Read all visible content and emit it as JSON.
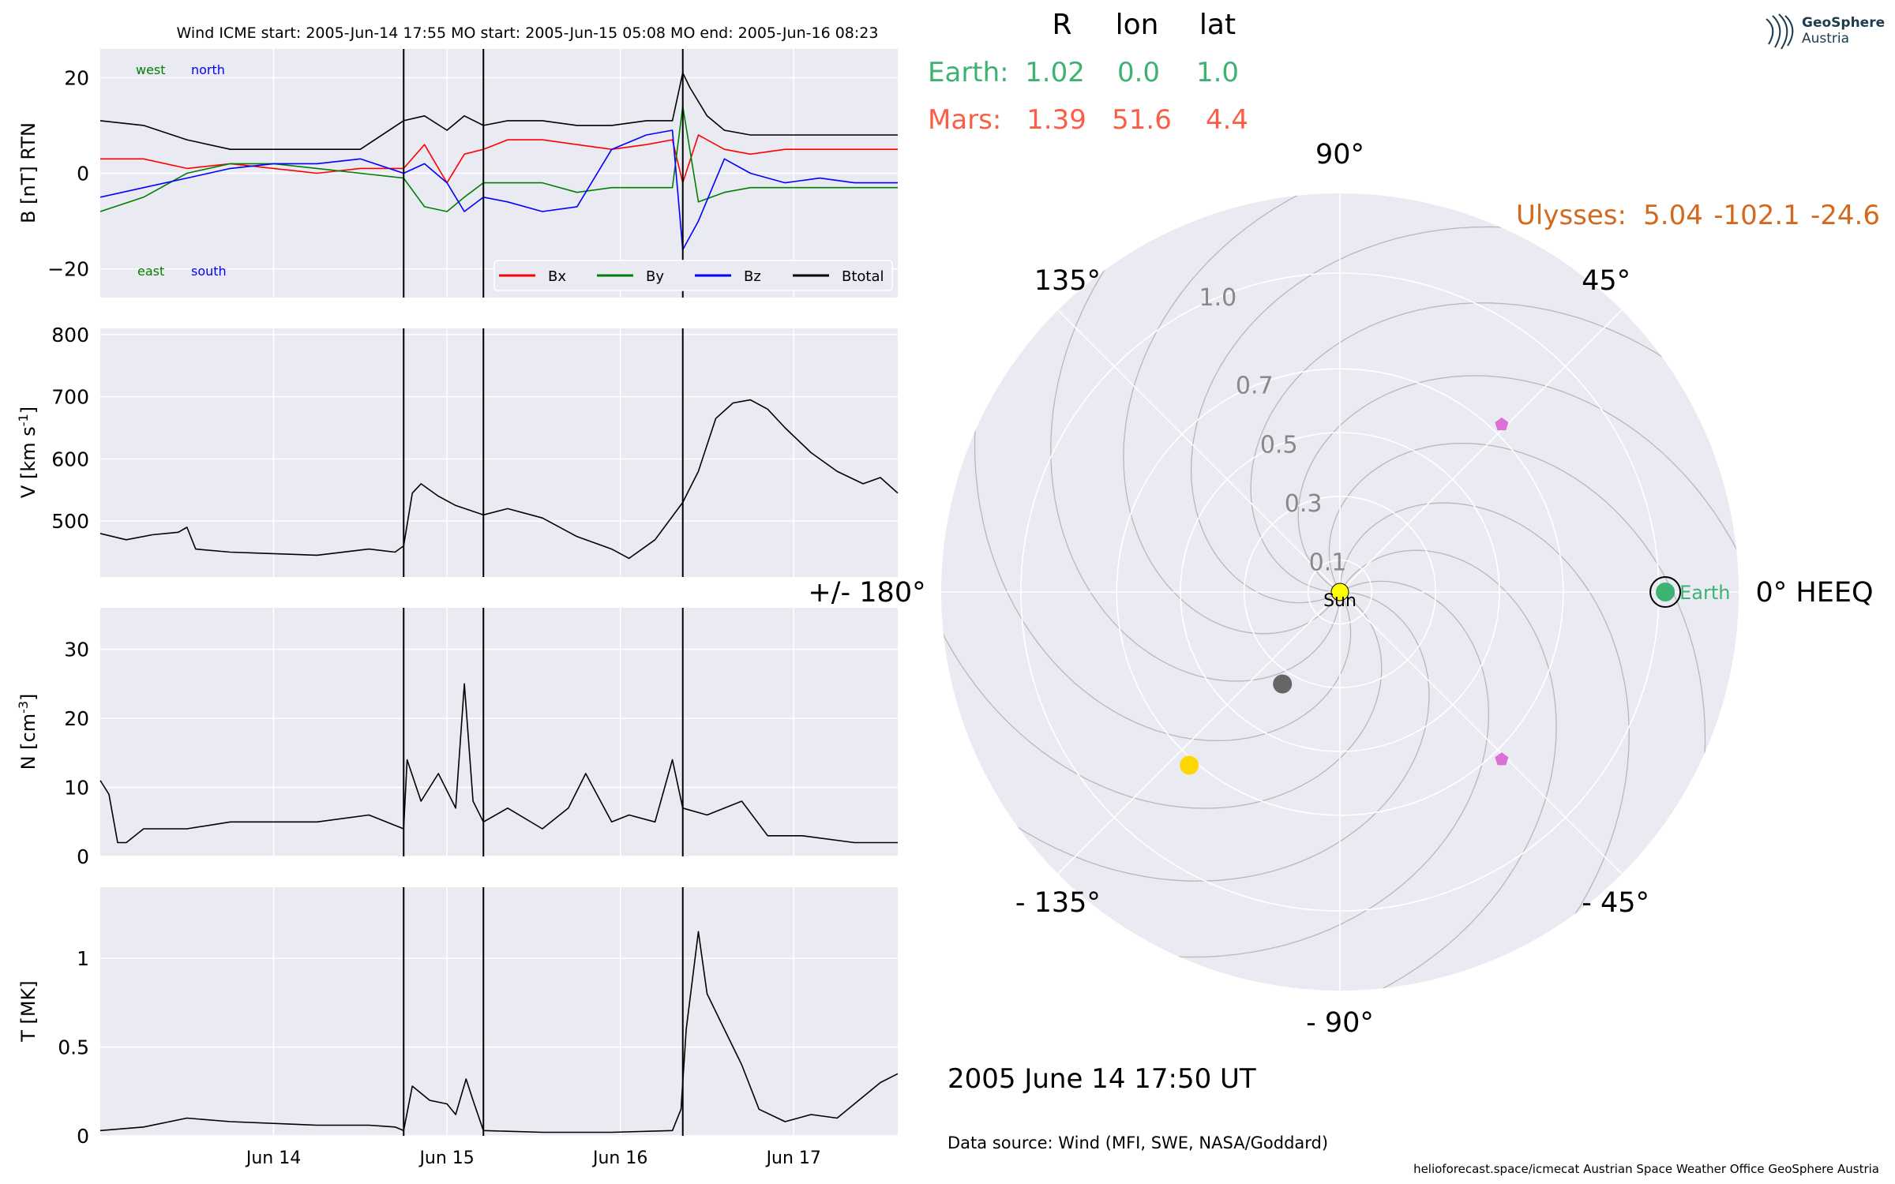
{
  "figure": {
    "header": "Wind    ICME start: 2005-Jun-14 17:55   MO start: 2005-Jun-15 05:08   MO end: 2005-Jun-16 08:23",
    "date_label": "2005 June 14  17:50 UT",
    "data_source": "Data source: Wind (MFI, SWE, NASA/Goddard)",
    "footer": "helioforecast.space/icmecat   Austrian Space Weather Office   GeoSphere Austria",
    "logo": {
      "line1": "GeoSphere",
      "line2": "Austria"
    }
  },
  "colors": {
    "panel_bg": "#eaeaf2",
    "grid": "#ffffff",
    "bx": "#ff0000",
    "by": "#008000",
    "bz": "#0000ff",
    "btotal": "#000000",
    "earth": "#3cb371",
    "mars": "#fa5f46",
    "ulysses": "#d2691e",
    "sun": "#ffff00",
    "marker_pink": "#da70d6",
    "marker_gold": "#ffd700",
    "marker_grey": "#666666"
  },
  "chart_data": [
    {
      "type": "line",
      "id": "magnetic_field",
      "ylabel": "B [nT] RTN",
      "ylim": [
        -26,
        26
      ],
      "yticks": [
        -20,
        0,
        20
      ],
      "xlim": [
        -1.75,
        2.85
      ],
      "x_tick_values": [
        -0.75,
        0.25,
        1.25,
        2.25
      ],
      "x_tick_labels": [
        "Jun 14",
        "Jun 15",
        "Jun 16",
        "Jun 17"
      ],
      "annotations": {
        "west": "west",
        "north": "north",
        "east": "east",
        "south": "south"
      },
      "legend": {
        "placement": "bottom-right",
        "entries": [
          "Bx",
          "By",
          "Bz",
          "Btotal"
        ]
      },
      "event_lines": [
        0,
        0.46,
        1.61
      ],
      "series": [
        {
          "name": "Bx",
          "color": "#ff0000",
          "x": [
            -1.75,
            -1.5,
            -1.25,
            -1.0,
            -0.75,
            -0.5,
            -0.25,
            0.0,
            0.12,
            0.25,
            0.35,
            0.46,
            0.6,
            0.8,
            1.0,
            1.2,
            1.4,
            1.55,
            1.61,
            1.7,
            1.85,
            2.0,
            2.2,
            2.4,
            2.6,
            2.85
          ],
          "y": [
            3,
            3,
            1,
            2,
            1,
            0,
            1,
            1,
            6,
            -2,
            4,
            5,
            7,
            7,
            6,
            5,
            6,
            7,
            -2,
            8,
            5,
            4,
            5,
            5,
            5,
            5
          ]
        },
        {
          "name": "By",
          "color": "#008000",
          "x": [
            -1.75,
            -1.5,
            -1.25,
            -1.0,
            -0.75,
            -0.5,
            -0.25,
            0.0,
            0.12,
            0.25,
            0.35,
            0.46,
            0.6,
            0.8,
            1.0,
            1.2,
            1.4,
            1.55,
            1.61,
            1.7,
            1.85,
            2.0,
            2.2,
            2.4,
            2.6,
            2.85
          ],
          "y": [
            -8,
            -5,
            0,
            2,
            2,
            1,
            0,
            -1,
            -7,
            -8,
            -5,
            -2,
            -2,
            -2,
            -4,
            -3,
            -3,
            -3,
            14,
            -6,
            -4,
            -3,
            -3,
            -3,
            -3,
            -3
          ]
        },
        {
          "name": "Bz",
          "color": "#0000ff",
          "x": [
            -1.75,
            -1.5,
            -1.25,
            -1.0,
            -0.75,
            -0.5,
            -0.25,
            0.0,
            0.12,
            0.25,
            0.35,
            0.46,
            0.6,
            0.8,
            1.0,
            1.2,
            1.4,
            1.55,
            1.61,
            1.7,
            1.85,
            2.0,
            2.2,
            2.4,
            2.6,
            2.85
          ],
          "y": [
            -5,
            -3,
            -1,
            1,
            2,
            2,
            3,
            0,
            2,
            -2,
            -8,
            -5,
            -6,
            -8,
            -7,
            5,
            8,
            9,
            -16,
            -10,
            3,
            0,
            -2,
            -1,
            -2,
            -2
          ]
        },
        {
          "name": "Btotal",
          "color": "#000000",
          "x": [
            -1.75,
            -1.5,
            -1.25,
            -1.0,
            -0.75,
            -0.5,
            -0.25,
            0.0,
            0.12,
            0.25,
            0.35,
            0.46,
            0.6,
            0.8,
            1.0,
            1.2,
            1.4,
            1.55,
            1.61,
            1.65,
            1.75,
            1.85,
            2.0,
            2.2,
            2.4,
            2.6,
            2.85
          ],
          "y": [
            11,
            10,
            7,
            5,
            5,
            5,
            5,
            11,
            12,
            9,
            12,
            10,
            11,
            11,
            10,
            10,
            11,
            11,
            21,
            18,
            12,
            9,
            8,
            8,
            8,
            8,
            8
          ]
        }
      ]
    },
    {
      "type": "line",
      "id": "speed",
      "ylabel": "V [km s^-1]",
      "ylim": [
        410,
        810
      ],
      "yticks": [
        500,
        600,
        700,
        800
      ],
      "xlim": [
        -1.75,
        2.85
      ],
      "x_tick_values": [
        -0.75,
        0.25,
        1.25,
        2.25
      ],
      "event_lines": [
        0,
        0.46,
        1.61
      ],
      "series": [
        {
          "name": "V",
          "color": "#000000",
          "x": [
            -1.75,
            -1.6,
            -1.45,
            -1.3,
            -1.25,
            -1.2,
            -1.0,
            -0.8,
            -0.5,
            -0.2,
            -0.05,
            0.0,
            0.05,
            0.1,
            0.2,
            0.3,
            0.46,
            0.6,
            0.8,
            1.0,
            1.2,
            1.3,
            1.45,
            1.61,
            1.7,
            1.8,
            1.9,
            2.0,
            2.1,
            2.2,
            2.35,
            2.5,
            2.65,
            2.75,
            2.85
          ],
          "y": [
            480,
            470,
            478,
            482,
            490,
            455,
            450,
            448,
            445,
            455,
            450,
            460,
            545,
            560,
            540,
            525,
            510,
            520,
            505,
            475,
            455,
            440,
            470,
            530,
            580,
            665,
            690,
            695,
            680,
            650,
            610,
            580,
            560,
            570,
            545
          ]
        }
      ]
    },
    {
      "type": "line",
      "id": "density",
      "ylabel": "N [cm^-3]",
      "ylim": [
        0,
        36
      ],
      "yticks": [
        0,
        10,
        20,
        30
      ],
      "xlim": [
        -1.75,
        2.85
      ],
      "x_tick_values": [
        -0.75,
        0.25,
        1.25,
        2.25
      ],
      "event_lines": [
        0,
        0.46,
        1.61
      ],
      "series": [
        {
          "name": "N",
          "color": "#000000",
          "x": [
            -1.75,
            -1.7,
            -1.65,
            -1.6,
            -1.5,
            -1.25,
            -1.0,
            -0.5,
            -0.2,
            0.0,
            0.02,
            0.1,
            0.2,
            0.3,
            0.35,
            0.4,
            0.46,
            0.6,
            0.8,
            0.95,
            1.05,
            1.2,
            1.3,
            1.45,
            1.55,
            1.61,
            1.75,
            1.95,
            2.1,
            2.3,
            2.6,
            2.85
          ],
          "y": [
            11,
            9,
            2,
            2,
            4,
            4,
            5,
            5,
            6,
            4,
            14,
            8,
            12,
            7,
            25,
            8,
            5,
            7,
            4,
            7,
            12,
            5,
            6,
            5,
            14,
            7,
            6,
            8,
            3,
            3,
            2,
            2
          ]
        }
      ]
    },
    {
      "type": "line",
      "id": "temperature",
      "ylabel": "T [MK]",
      "ylim": [
        0,
        1.4
      ],
      "yticks": [
        0.0,
        0.5,
        1.0
      ],
      "xlim": [
        -1.75,
        2.85
      ],
      "x_tick_values": [
        -0.75,
        0.25,
        1.25,
        2.25
      ],
      "x_tick_labels": [
        "Jun 14",
        "Jun 15",
        "Jun 16",
        "Jun 17"
      ],
      "event_lines": [
        0,
        0.46,
        1.61
      ],
      "series": [
        {
          "name": "T",
          "color": "#000000",
          "x": [
            -1.75,
            -1.5,
            -1.25,
            -1.0,
            -0.5,
            -0.2,
            -0.05,
            0.0,
            0.05,
            0.15,
            0.25,
            0.3,
            0.36,
            0.4,
            0.46,
            0.8,
            1.2,
            1.55,
            1.6,
            1.63,
            1.7,
            1.75,
            1.85,
            1.95,
            2.05,
            2.2,
            2.35,
            2.5,
            2.65,
            2.75,
            2.85
          ],
          "y": [
            0.03,
            0.05,
            0.1,
            0.08,
            0.06,
            0.06,
            0.05,
            0.03,
            0.28,
            0.2,
            0.18,
            0.12,
            0.32,
            0.2,
            0.03,
            0.02,
            0.02,
            0.03,
            0.15,
            0.6,
            1.15,
            0.8,
            0.6,
            0.4,
            0.15,
            0.08,
            0.12,
            0.1,
            0.22,
            0.3,
            0.35
          ]
        }
      ]
    },
    {
      "type": "scatter",
      "id": "polar_positions",
      "coordinate_system": "HEEQ polar",
      "r_ticks": [
        0.1,
        0.3,
        0.5,
        0.7,
        1.0
      ],
      "r_tick_labels": [
        "0.1",
        "0.3",
        "0.5",
        "0.7",
        "1.0"
      ],
      "rlim": [
        0,
        1.25
      ],
      "angle_labels": [
        {
          "angle": 0,
          "text": "0° HEEQ"
        },
        {
          "angle": 45,
          "text": "45°"
        },
        {
          "angle": 90,
          "text": "90°"
        },
        {
          "angle": 135,
          "text": "135°"
        },
        {
          "angle": 180,
          "text": "+/- 180°"
        },
        {
          "angle": -135,
          "text": "- 135°"
        },
        {
          "angle": -90,
          "text": "- 90°"
        },
        {
          "angle": -45,
          "text": "- 45°"
        }
      ],
      "positions_table": {
        "headers": [
          "R",
          "lon",
          "lat"
        ],
        "rows": [
          {
            "name": "Earth:",
            "R": "1.02",
            "lon": "0.0",
            "lat": "1.0",
            "color": "#3cb371"
          },
          {
            "name": "Mars:",
            "R": "1.39",
            "lon": "51.6",
            "lat": "4.4",
            "color": "#fa5f46"
          }
        ],
        "ulysses": {
          "name": "Ulysses:",
          "R": "5.04",
          "lon": "-102.1",
          "lat": "-24.6",
          "color": "#d2691e"
        }
      },
      "bodies": [
        {
          "label": "Sun",
          "r": 0.0,
          "lon": 0,
          "color": "#ffff00",
          "marker": "circle"
        },
        {
          "label": "Earth",
          "r": 1.02,
          "lon": 0.0,
          "color": "#3cb371",
          "marker": "circle"
        },
        {
          "label": "",
          "r": 0.73,
          "lon": 46.0,
          "color": "#da70d6",
          "marker": "pentagon"
        },
        {
          "label": "",
          "r": 0.73,
          "lon": -46.0,
          "color": "#da70d6",
          "marker": "pentagon"
        },
        {
          "label": "",
          "r": 0.72,
          "lon": -131.0,
          "color": "#ffd700",
          "marker": "circle"
        },
        {
          "label": "",
          "r": 0.34,
          "lon": -122.0,
          "color": "#666666",
          "marker": "circle"
        }
      ],
      "parker_spiral_count": 12
    }
  ]
}
